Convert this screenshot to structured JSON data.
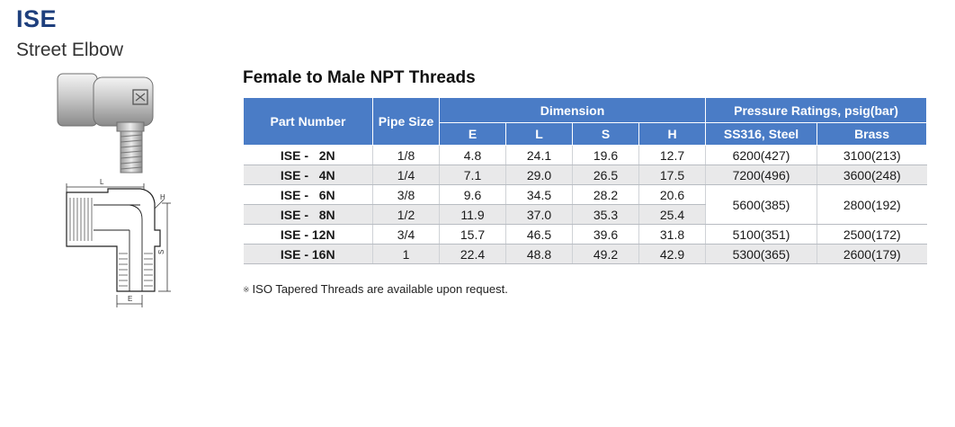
{
  "product": {
    "code": "ISE",
    "name": "Street Elbow"
  },
  "table_title": "Female to Male NPT Threads",
  "headers": {
    "part_number": "Part Number",
    "pipe_size": "Pipe Size",
    "dimension": "Dimension",
    "pressure": "Pressure Ratings, psig(bar)",
    "dim_cols": [
      "E",
      "L",
      "S",
      "H"
    ],
    "pressure_cols": [
      "SS316, Steel",
      "Brass"
    ]
  },
  "rows": [
    {
      "part": "ISE -   2N",
      "size": "1/8",
      "E": "4.8",
      "L": "24.1",
      "S": "19.6",
      "H": "12.7",
      "ss": "6200(427)",
      "brass": "3100(213)"
    },
    {
      "part": "ISE -   4N",
      "size": "1/4",
      "E": "7.1",
      "L": "29.0",
      "S": "26.5",
      "H": "17.5",
      "ss": "7200(496)",
      "brass": "3600(248)"
    },
    {
      "part": "ISE -   6N",
      "size": "3/8",
      "E": "9.6",
      "L": "34.5",
      "S": "28.2",
      "H": "20.6",
      "ss": "5600(385)",
      "brass": "2800(192)"
    },
    {
      "part": "ISE -   8N",
      "size": "1/2",
      "E": "11.9",
      "L": "37.0",
      "S": "35.3",
      "H": "25.4",
      "ss": "",
      "brass": ""
    },
    {
      "part": "ISE - 12N",
      "size": "3/4",
      "E": "15.7",
      "L": "46.5",
      "S": "39.6",
      "H": "31.8",
      "ss": "5100(351)",
      "brass": "2500(172)"
    },
    {
      "part": "ISE - 16N",
      "size": "1",
      "E": "22.4",
      "L": "48.8",
      "S": "49.2",
      "H": "42.9",
      "ss": "5300(365)",
      "brass": "2600(179)"
    }
  ],
  "footnote": "ISO Tapered Threads are available upon request.",
  "footnote_mark": "※",
  "drawing_labels": {
    "L": "L",
    "H": "H",
    "S": "S",
    "E": "E"
  }
}
